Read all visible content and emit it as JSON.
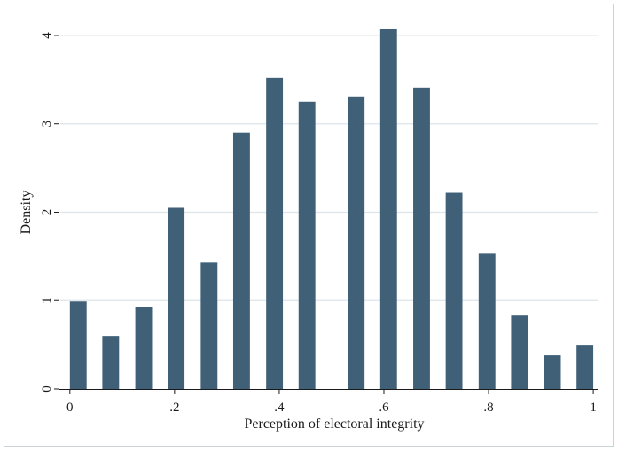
{
  "chart_data": {
    "type": "bar",
    "title": "",
    "xlabel": "Perception of electoral integrity",
    "ylabel": "Density",
    "xlim": [
      -0.02,
      1.01
    ],
    "ylim": [
      0,
      4.2
    ],
    "grid": true,
    "bar_color": "#406078",
    "grid_color": "#dde5ea",
    "x_ticks": [
      0,
      0.2,
      0.4,
      0.6,
      0.8,
      1
    ],
    "x_tick_labels": [
      "0",
      ".2",
      ".4",
      ".6",
      ".8",
      "1"
    ],
    "y_ticks": [
      0,
      1,
      2,
      3,
      4
    ],
    "y_tick_labels": [
      "0",
      "1",
      "2",
      "3",
      "4"
    ],
    "bar_width": 0.032,
    "bars": [
      {
        "x": 0.016,
        "y": 0.99
      },
      {
        "x": 0.078,
        "y": 0.6
      },
      {
        "x": 0.141,
        "y": 0.93
      },
      {
        "x": 0.203,
        "y": 2.05
      },
      {
        "x": 0.266,
        "y": 1.43
      },
      {
        "x": 0.328,
        "y": 2.9
      },
      {
        "x": 0.391,
        "y": 3.52
      },
      {
        "x": 0.453,
        "y": 3.25
      },
      {
        "x": 0.547,
        "y": 3.31
      },
      {
        "x": 0.609,
        "y": 4.07
      },
      {
        "x": 0.672,
        "y": 3.41
      },
      {
        "x": 0.734,
        "y": 2.22
      },
      {
        "x": 0.797,
        "y": 1.53
      },
      {
        "x": 0.859,
        "y": 0.83
      },
      {
        "x": 0.922,
        "y": 0.38
      },
      {
        "x": 0.984,
        "y": 0.5
      }
    ]
  }
}
